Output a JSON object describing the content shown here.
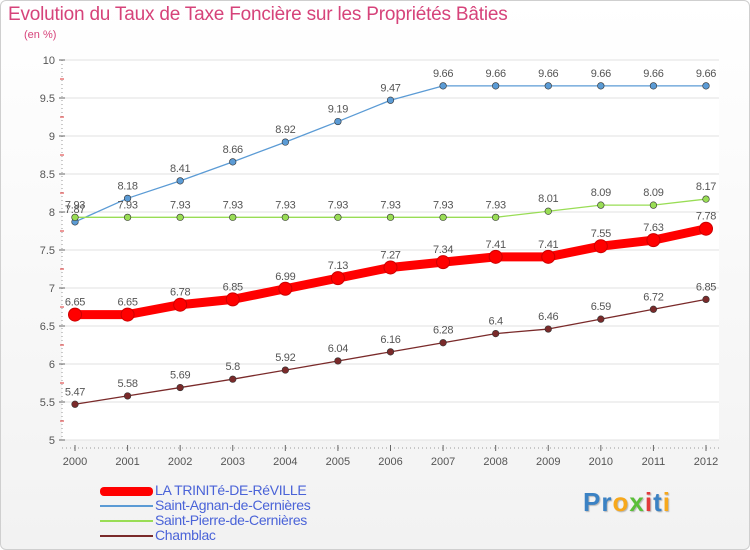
{
  "title": "Evolution du Taux de Taxe Foncière sur les Propriétés Bâties",
  "subtitle": "(en %)",
  "logo": "Proxiti",
  "chart_data": {
    "type": "line",
    "title": "Evolution du Taux de Taxe Foncière sur les Propriétés Bâties",
    "ylabel": "(en %)",
    "xlabel": "",
    "x": [
      "2000",
      "2001",
      "2002",
      "2003",
      "2004",
      "2005",
      "2006",
      "2007",
      "2008",
      "2009",
      "2010",
      "2011",
      "2012"
    ],
    "ylim": [
      5,
      10
    ],
    "yticks": [
      "5",
      "5.5",
      "6",
      "6.5",
      "7",
      "7.5",
      "8",
      "8.5",
      "9",
      "9.5",
      "10"
    ],
    "grid": "horizontal",
    "legend_position": "bottom-left",
    "series": [
      {
        "name": "LA TRINITé-DE-RéVILLE",
        "color": "#ff0000",
        "values": [
          6.65,
          6.65,
          6.78,
          6.85,
          6.99,
          7.13,
          7.27,
          7.34,
          7.41,
          7.41,
          7.55,
          7.63,
          7.78
        ],
        "labels": [
          "6.65",
          "6.65",
          "6.78",
          "6.85",
          "6.99",
          "7.13",
          "7.27",
          "7.34",
          "7.41",
          "7.41",
          "7.55",
          "7.63",
          "7.78"
        ]
      },
      {
        "name": "Saint-Agnan-de-Cernières",
        "color": "#5b9bd5",
        "values": [
          7.87,
          8.18,
          8.41,
          8.66,
          8.92,
          9.19,
          9.47,
          9.66,
          9.66,
          9.66,
          9.66,
          9.66,
          9.66
        ],
        "labels": [
          "7.87",
          "8.18",
          "8.41",
          "8.66",
          "8.92",
          "9.19",
          "9.47",
          "9.66",
          "9.66",
          "9.66",
          "9.66",
          "9.66",
          "9.66"
        ]
      },
      {
        "name": "Saint-Pierre-de-Cernières",
        "color": "#99dd55",
        "values": [
          7.93,
          7.93,
          7.93,
          7.93,
          7.93,
          7.93,
          7.93,
          7.93,
          7.93,
          8.01,
          8.09,
          8.09,
          8.17
        ],
        "labels": [
          "7.93",
          "7.93",
          "7.93",
          "7.93",
          "7.93",
          "7.93",
          "7.93",
          "7.93",
          "7.93",
          "8.01",
          "8.09",
          "8.09",
          "8.17"
        ]
      },
      {
        "name": "Chamblac",
        "color": "#7a2a2a",
        "values": [
          5.47,
          5.58,
          5.69,
          5.8,
          5.92,
          6.04,
          6.16,
          6.28,
          6.4,
          6.46,
          6.59,
          6.72,
          6.85
        ],
        "labels": [
          "5.47",
          "5.58",
          "5.69",
          "5.8",
          "5.92",
          "6.04",
          "6.16",
          "6.28",
          "6.4",
          "6.46",
          "6.59",
          "6.72",
          "6.85"
        ]
      }
    ]
  }
}
